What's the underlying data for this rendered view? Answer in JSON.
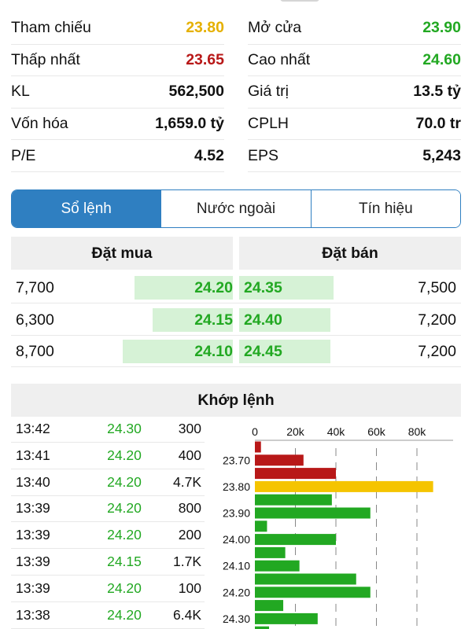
{
  "stats": [
    {
      "left": {
        "label": "Tham chiếu",
        "value": "23.80",
        "color": "ref"
      },
      "right": {
        "label": "Mở cửa",
        "value": "23.90",
        "color": "up"
      }
    },
    {
      "left": {
        "label": "Thấp nhất",
        "value": "23.65",
        "color": "down"
      },
      "right": {
        "label": "Cao nhất",
        "value": "24.60",
        "color": "up"
      }
    },
    {
      "left": {
        "label": "KL",
        "value": "562,500",
        "color": "dark"
      },
      "right": {
        "label": "Giá trị",
        "value": "13.5 tỷ",
        "color": "dark"
      }
    },
    {
      "left": {
        "label": "Vốn hóa",
        "value": "1,659.0 tỷ",
        "color": "dark"
      },
      "right": {
        "label": "CPLH",
        "value": "70.0 tr",
        "color": "dark"
      }
    },
    {
      "left": {
        "label": "P/E",
        "value": "4.52",
        "color": "dark"
      },
      "right": {
        "label": "EPS",
        "value": "5,243",
        "color": "dark"
      }
    }
  ],
  "tabs": [
    {
      "label": "Sổ lệnh",
      "active": true
    },
    {
      "label": "Nước ngoài",
      "active": false
    },
    {
      "label": "Tín hiệu",
      "active": false
    }
  ],
  "order_book": {
    "buy_title": "Đặt mua",
    "sell_title": "Đặt bán",
    "rows": [
      {
        "bid_vol": "7,700",
        "bid_px": "24.20",
        "ask_px": "24.35",
        "ask_vol": "7,500",
        "bid_frac": 0.89,
        "ask_frac": 0.86
      },
      {
        "bid_vol": "6,300",
        "bid_px": "24.15",
        "ask_px": "24.40",
        "ask_vol": "7,200",
        "bid_frac": 0.73,
        "ask_frac": 0.83
      },
      {
        "bid_vol": "8,700",
        "bid_px": "24.10",
        "ask_px": "24.45",
        "ask_vol": "7,200",
        "bid_frac": 1.0,
        "ask_frac": 0.83
      }
    ]
  },
  "matched": {
    "title": "Khớp lệnh",
    "trades": [
      {
        "time": "13:42",
        "price": "24.30",
        "vol": "300"
      },
      {
        "time": "13:41",
        "price": "24.20",
        "vol": "400"
      },
      {
        "time": "13:40",
        "price": "24.20",
        "vol": "4.7K"
      },
      {
        "time": "13:39",
        "price": "24.20",
        "vol": "800"
      },
      {
        "time": "13:39",
        "price": "24.20",
        "vol": "200"
      },
      {
        "time": "13:39",
        "price": "24.15",
        "vol": "1.7K"
      },
      {
        "time": "13:39",
        "price": "24.20",
        "vol": "100"
      },
      {
        "time": "13:38",
        "price": "24.20",
        "vol": "6.4K"
      }
    ]
  },
  "colors": {
    "up": "#22a822",
    "down": "#b81818",
    "ref": "#f5c400",
    "accent": "#2f7fc1"
  },
  "chart_data": {
    "type": "bar",
    "orientation": "horizontal",
    "x_ticks": [
      "0",
      "20k",
      "40k",
      "60k",
      "80k"
    ],
    "xlim": [
      0,
      95000
    ],
    "y_tick_labels": [
      "23.70",
      "23.80",
      "23.90",
      "24.00",
      "24.10",
      "24.20",
      "24.30"
    ],
    "bars": [
      {
        "price": 23.65,
        "value": 3000,
        "color": "down"
      },
      {
        "price": 23.7,
        "value": 24000,
        "color": "down"
      },
      {
        "price": 23.75,
        "value": 40000,
        "color": "down"
      },
      {
        "price": 23.8,
        "value": 88000,
        "color": "ref"
      },
      {
        "price": 23.85,
        "value": 38000,
        "color": "up"
      },
      {
        "price": 23.9,
        "value": 57000,
        "color": "up"
      },
      {
        "price": 23.95,
        "value": 6000,
        "color": "up"
      },
      {
        "price": 24.0,
        "value": 40000,
        "color": "up"
      },
      {
        "price": 24.05,
        "value": 15000,
        "color": "up"
      },
      {
        "price": 24.1,
        "value": 22000,
        "color": "up"
      },
      {
        "price": 24.15,
        "value": 50000,
        "color": "up"
      },
      {
        "price": 24.2,
        "value": 57000,
        "color": "up"
      },
      {
        "price": 24.25,
        "value": 14000,
        "color": "up"
      },
      {
        "price": 24.3,
        "value": 31000,
        "color": "up"
      },
      {
        "price": 24.35,
        "value": 7000,
        "color": "up"
      }
    ]
  }
}
